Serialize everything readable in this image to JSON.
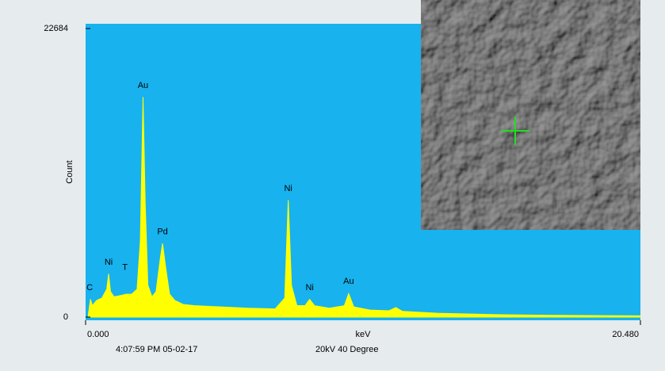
{
  "chart_data": {
    "type": "area",
    "ylabel": "Count",
    "xlabel": "keV",
    "footer_left": "4:07:59 PM  05-02-17",
    "footer_right": "20kV 40 Degree",
    "color": "#ffff00",
    "background": "#18b2ee",
    "xlim": [
      0,
      20.48
    ],
    "ylim": [
      0,
      22684
    ],
    "xticks": [
      {
        "value": 0,
        "label": "0.000"
      },
      {
        "value": 20.48,
        "label": "20.480"
      }
    ],
    "yticks": [
      0,
      22684
    ],
    "x": [
      0.1,
      0.18,
      0.25,
      0.4,
      0.6,
      0.78,
      0.85,
      0.92,
      1.05,
      1.3,
      1.5,
      1.7,
      1.9,
      2.02,
      2.12,
      2.2,
      2.3,
      2.45,
      2.6,
      2.75,
      2.84,
      2.95,
      3.1,
      3.3,
      3.6,
      4.0,
      5.0,
      6.0,
      7.0,
      7.35,
      7.48,
      7.6,
      7.8,
      8.1,
      8.27,
      8.45,
      9.0,
      9.55,
      9.71,
      9.9,
      10.5,
      11.2,
      11.45,
      11.7,
      13,
      15,
      17,
      20.48
    ],
    "values": [
      200,
      1400,
      900,
      1300,
      1500,
      2200,
      3400,
      2000,
      1600,
      1700,
      1800,
      1800,
      2200,
      6000,
      17300,
      9000,
      2500,
      1600,
      2000,
      4500,
      5800,
      4000,
      1800,
      1300,
      1000,
      900,
      800,
      700,
      650,
      1500,
      9200,
      2500,
      900,
      900,
      1400,
      900,
      700,
      900,
      1850,
      800,
      550,
      500,
      750,
      450,
      300,
      200,
      150,
      100
    ],
    "annotations": [
      {
        "text": "C",
        "x": 0.15,
        "y": 2300
      },
      {
        "text": "Ni",
        "x": 0.85,
        "y": 4300
      },
      {
        "text": "T",
        "x": 1.45,
        "y": 3900
      },
      {
        "text": "Au",
        "x": 2.12,
        "y": 18200
      },
      {
        "text": "Pd",
        "x": 2.84,
        "y": 6700
      },
      {
        "text": "Ni",
        "x": 7.48,
        "y": 10100
      },
      {
        "text": "Ni",
        "x": 8.27,
        "y": 2300
      },
      {
        "text": "Au",
        "x": 9.71,
        "y": 2800
      }
    ]
  }
}
